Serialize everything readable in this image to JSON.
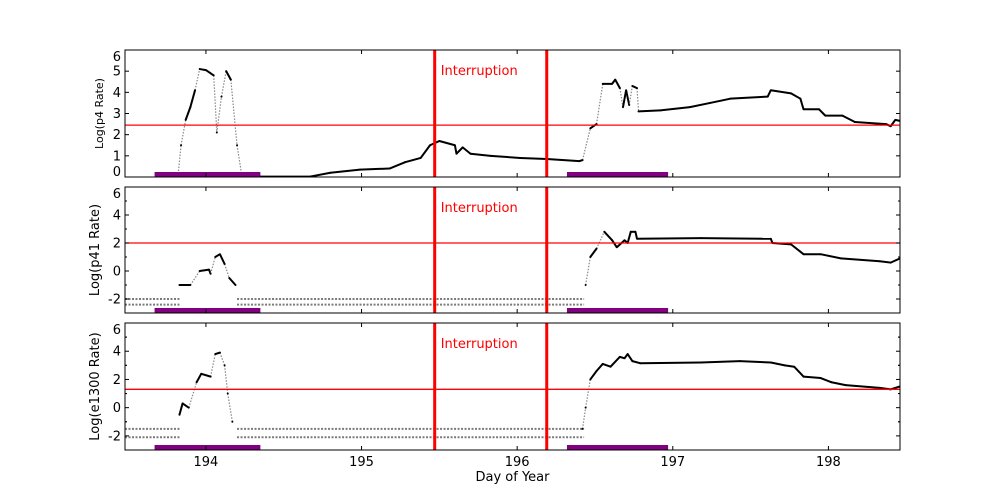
{
  "chart_data": [
    {
      "type": "scatter",
      "ylabel": "Log(p4 Rate)",
      "ylim": [
        0,
        6
      ],
      "yticks": [
        0,
        1,
        2,
        3,
        4,
        5,
        6
      ],
      "threshold": 2.45,
      "annotation": "Interruption",
      "points": [
        [
          193.82,
          0
        ],
        [
          193.84,
          1.5
        ],
        [
          193.87,
          2.7
        ],
        [
          193.9,
          3.3
        ],
        [
          193.93,
          4.1
        ],
        [
          193.96,
          5.1
        ],
        [
          194.0,
          5.05
        ],
        [
          194.05,
          4.8
        ],
        [
          194.07,
          2.1
        ],
        [
          194.1,
          3.8
        ],
        [
          194.13,
          5.0
        ],
        [
          194.16,
          4.6
        ],
        [
          194.2,
          1.5
        ],
        [
          194.23,
          0.1
        ],
        [
          194.35,
          0.02
        ],
        [
          194.67,
          0.02
        ],
        [
          194.8,
          0.2
        ],
        [
          194.99,
          0.35
        ],
        [
          195.18,
          0.4
        ],
        [
          195.28,
          0.7
        ],
        [
          195.38,
          0.9
        ],
        [
          195.44,
          1.5
        ],
        [
          195.5,
          1.7
        ],
        [
          195.6,
          1.5
        ],
        [
          195.61,
          1.1
        ],
        [
          195.65,
          1.4
        ],
        [
          195.7,
          1.1
        ],
        [
          195.83,
          1.0
        ],
        [
          196.02,
          0.9
        ],
        [
          196.19,
          0.85
        ],
        [
          196.4,
          0.75
        ],
        [
          196.42,
          0.8
        ],
        [
          196.47,
          2.3
        ],
        [
          196.51,
          2.5
        ],
        [
          196.55,
          4.4
        ],
        [
          196.61,
          4.4
        ],
        [
          196.63,
          4.6
        ],
        [
          196.66,
          4.2
        ],
        [
          196.68,
          3.3
        ],
        [
          196.7,
          4.1
        ],
        [
          196.72,
          3.4
        ],
        [
          196.74,
          4.3
        ],
        [
          196.77,
          4.2
        ],
        [
          196.78,
          3.1
        ],
        [
          196.92,
          3.15
        ],
        [
          197.11,
          3.3
        ],
        [
          197.24,
          3.5
        ],
        [
          197.37,
          3.7
        ],
        [
          197.61,
          3.8
        ],
        [
          197.63,
          4.1
        ],
        [
          197.76,
          3.95
        ],
        [
          197.82,
          3.7
        ],
        [
          197.84,
          3.2
        ],
        [
          197.94,
          3.2
        ],
        [
          197.98,
          2.9
        ],
        [
          198.09,
          2.9
        ],
        [
          198.17,
          2.6
        ],
        [
          198.37,
          2.5
        ],
        [
          198.4,
          2.4
        ],
        [
          198.43,
          2.7
        ],
        [
          198.46,
          2.65
        ]
      ],
      "baseline": []
    },
    {
      "type": "scatter",
      "ylabel": "Log(p41 Rate)",
      "ylim": [
        -3,
        6
      ],
      "yticks": [
        -2,
        0,
        2,
        4,
        6
      ],
      "threshold": 2.0,
      "annotation": "Interruption",
      "points": [
        [
          193.83,
          -1
        ],
        [
          193.9,
          -1
        ],
        [
          193.96,
          0
        ],
        [
          194.02,
          0.1
        ],
        [
          194.03,
          -0.2
        ],
        [
          194.06,
          1.0
        ],
        [
          194.09,
          1.2
        ],
        [
          194.12,
          0.5
        ],
        [
          194.15,
          -0.5
        ],
        [
          194.19,
          -1
        ],
        [
          196.44,
          -1
        ],
        [
          196.47,
          1.0
        ],
        [
          196.51,
          1.6
        ],
        [
          196.56,
          2.8
        ],
        [
          196.61,
          2.2
        ],
        [
          196.64,
          1.7
        ],
        [
          196.69,
          2.2
        ],
        [
          196.71,
          2.0
        ],
        [
          196.73,
          2.8
        ],
        [
          196.76,
          2.8
        ],
        [
          196.77,
          2.3
        ],
        [
          197.18,
          2.35
        ],
        [
          197.63,
          2.3
        ],
        [
          197.64,
          2.0
        ],
        [
          197.76,
          1.9
        ],
        [
          197.84,
          1.2
        ],
        [
          197.95,
          1.2
        ],
        [
          198.08,
          0.9
        ],
        [
          198.33,
          0.7
        ],
        [
          198.4,
          0.6
        ],
        [
          198.46,
          0.9
        ]
      ],
      "baseline": [
        [
          193.48,
          193.83,
          -2.0
        ],
        [
          193.48,
          193.83,
          -2.4
        ],
        [
          194.2,
          196.43,
          -2.0
        ],
        [
          194.2,
          196.43,
          -2.4
        ]
      ]
    },
    {
      "type": "scatter",
      "ylabel": "Log(e1300 Rate)",
      "xlabel": "Day of Year",
      "ylim": [
        -3,
        6
      ],
      "yticks": [
        -2,
        0,
        2,
        4,
        6
      ],
      "threshold": 1.3,
      "annotation": "Interruption",
      "points": [
        [
          193.83,
          -0.5
        ],
        [
          193.85,
          0.3
        ],
        [
          193.89,
          0
        ],
        [
          193.94,
          1.8
        ],
        [
          193.97,
          2.4
        ],
        [
          194.03,
          2.2
        ],
        [
          194.06,
          3.8
        ],
        [
          194.09,
          3.9
        ],
        [
          194.12,
          3.0
        ],
        [
          194.14,
          1.0
        ],
        [
          194.17,
          -1
        ],
        [
          196.42,
          -1.5
        ],
        [
          196.44,
          0
        ],
        [
          196.47,
          2.0
        ],
        [
          196.51,
          2.6
        ],
        [
          196.55,
          3.1
        ],
        [
          196.6,
          2.9
        ],
        [
          196.66,
          3.6
        ],
        [
          196.69,
          3.5
        ],
        [
          196.71,
          3.8
        ],
        [
          196.74,
          3.3
        ],
        [
          196.79,
          3.15
        ],
        [
          197.18,
          3.2
        ],
        [
          197.43,
          3.3
        ],
        [
          197.63,
          3.2
        ],
        [
          197.72,
          3.0
        ],
        [
          197.78,
          2.9
        ],
        [
          197.84,
          2.2
        ],
        [
          197.95,
          2.1
        ],
        [
          198.02,
          1.8
        ],
        [
          198.11,
          1.6
        ],
        [
          198.33,
          1.4
        ],
        [
          198.4,
          1.3
        ],
        [
          198.46,
          1.5
        ]
      ],
      "baseline": [
        [
          193.48,
          193.83,
          -1.5
        ],
        [
          193.48,
          193.83,
          -2.1
        ],
        [
          194.2,
          196.43,
          -1.5
        ],
        [
          194.2,
          196.43,
          -2.1
        ]
      ]
    }
  ],
  "shared": {
    "xlim": [
      193.48,
      198.46
    ],
    "xticks": [
      194,
      195,
      196,
      197,
      198
    ],
    "interruptions": [
      195.47,
      196.19
    ],
    "purple_bars": [
      [
        193.67,
        194.35
      ],
      [
        196.32,
        196.97
      ]
    ],
    "colors": {
      "data": "#000000",
      "threshold": "#ff0000",
      "interruption": "#ff0000",
      "bar": "#800080"
    }
  }
}
